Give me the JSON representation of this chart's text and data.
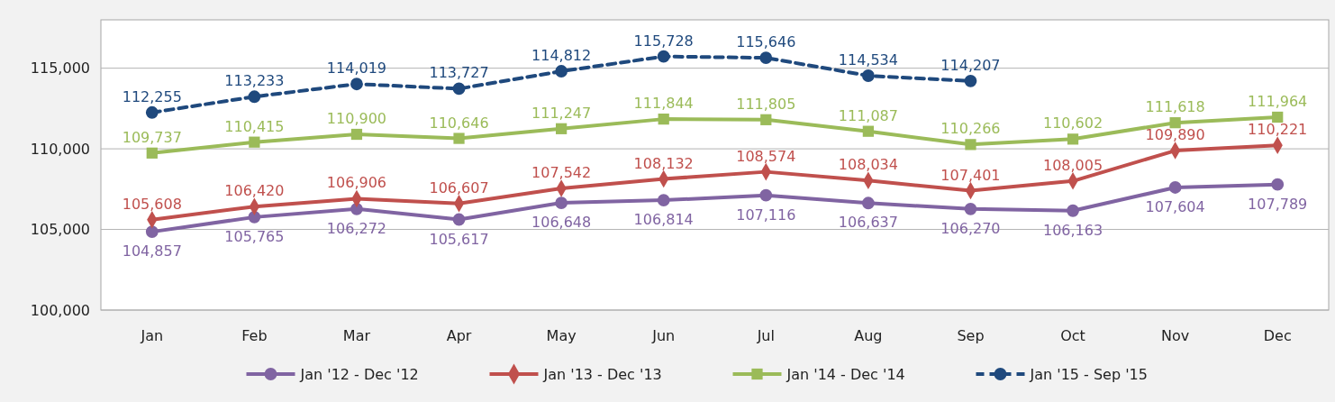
{
  "chart_data": {
    "type": "line",
    "categories": [
      "Jan",
      "Feb",
      "Mar",
      "Apr",
      "May",
      "Jun",
      "Jul",
      "Aug",
      "Sep",
      "Oct",
      "Nov",
      "Dec"
    ],
    "ylim": [
      100000,
      118000
    ],
    "yticks": [
      {
        "value": 100000,
        "label": "100,000"
      },
      {
        "value": 105000,
        "label": "105,000"
      },
      {
        "value": 110000,
        "label": "110,000"
      },
      {
        "value": 115000,
        "label": "115,000"
      }
    ],
    "grid": "y",
    "legend": "bottom",
    "series": [
      {
        "name": "Jan '12 - Dec '12",
        "color": "#8064a2",
        "marker": "circle",
        "line_style": "solid",
        "values": [
          104857,
          105765,
          106272,
          105617,
          106648,
          106814,
          107116,
          106637,
          106270,
          106163,
          107604,
          107789
        ],
        "value_labels": [
          "104,857",
          "105,765",
          "106,272",
          "105,617",
          "106,648",
          "106,814",
          "107,116",
          "106,637",
          "106,270",
          "106,163",
          "107,604",
          "107,789"
        ]
      },
      {
        "name": "Jan '13 - Dec '13",
        "color": "#c0504d",
        "marker": "diamond",
        "line_style": "solid",
        "values": [
          105608,
          106420,
          106906,
          106607,
          107542,
          108132,
          108574,
          108034,
          107401,
          108005,
          109890,
          110221
        ],
        "value_labels": [
          "105,608",
          "106,420",
          "106,906",
          "106,607",
          "107,542",
          "108,132",
          "108,574",
          "108,034",
          "107,401",
          "108,005",
          "109,890",
          "110,221"
        ]
      },
      {
        "name": "Jan '14 - Dec '14",
        "color": "#9bbb59",
        "marker": "square",
        "line_style": "solid",
        "values": [
          109737,
          110415,
          110900,
          110646,
          111247,
          111844,
          111805,
          111087,
          110266,
          110602,
          111618,
          111964
        ],
        "value_labels": [
          "109,737",
          "110,415",
          "110,900",
          "110,646",
          "111,247",
          "111,844",
          "111,805",
          "111,087",
          "110,266",
          "110,602",
          "111,618",
          "111,964"
        ]
      },
      {
        "name": "Jan '15 - Sep '15",
        "color": "#1f497d",
        "marker": "circle",
        "line_style": "dashed",
        "values": [
          112255,
          113233,
          114019,
          113727,
          114812,
          115728,
          115646,
          114534,
          114207,
          null,
          null,
          null
        ],
        "value_labels": [
          "112,255",
          "113,233",
          "114,019",
          "113,727",
          "114,812",
          "115,728",
          "115,646",
          "114,534",
          "114,207",
          null,
          null,
          null
        ]
      }
    ]
  }
}
